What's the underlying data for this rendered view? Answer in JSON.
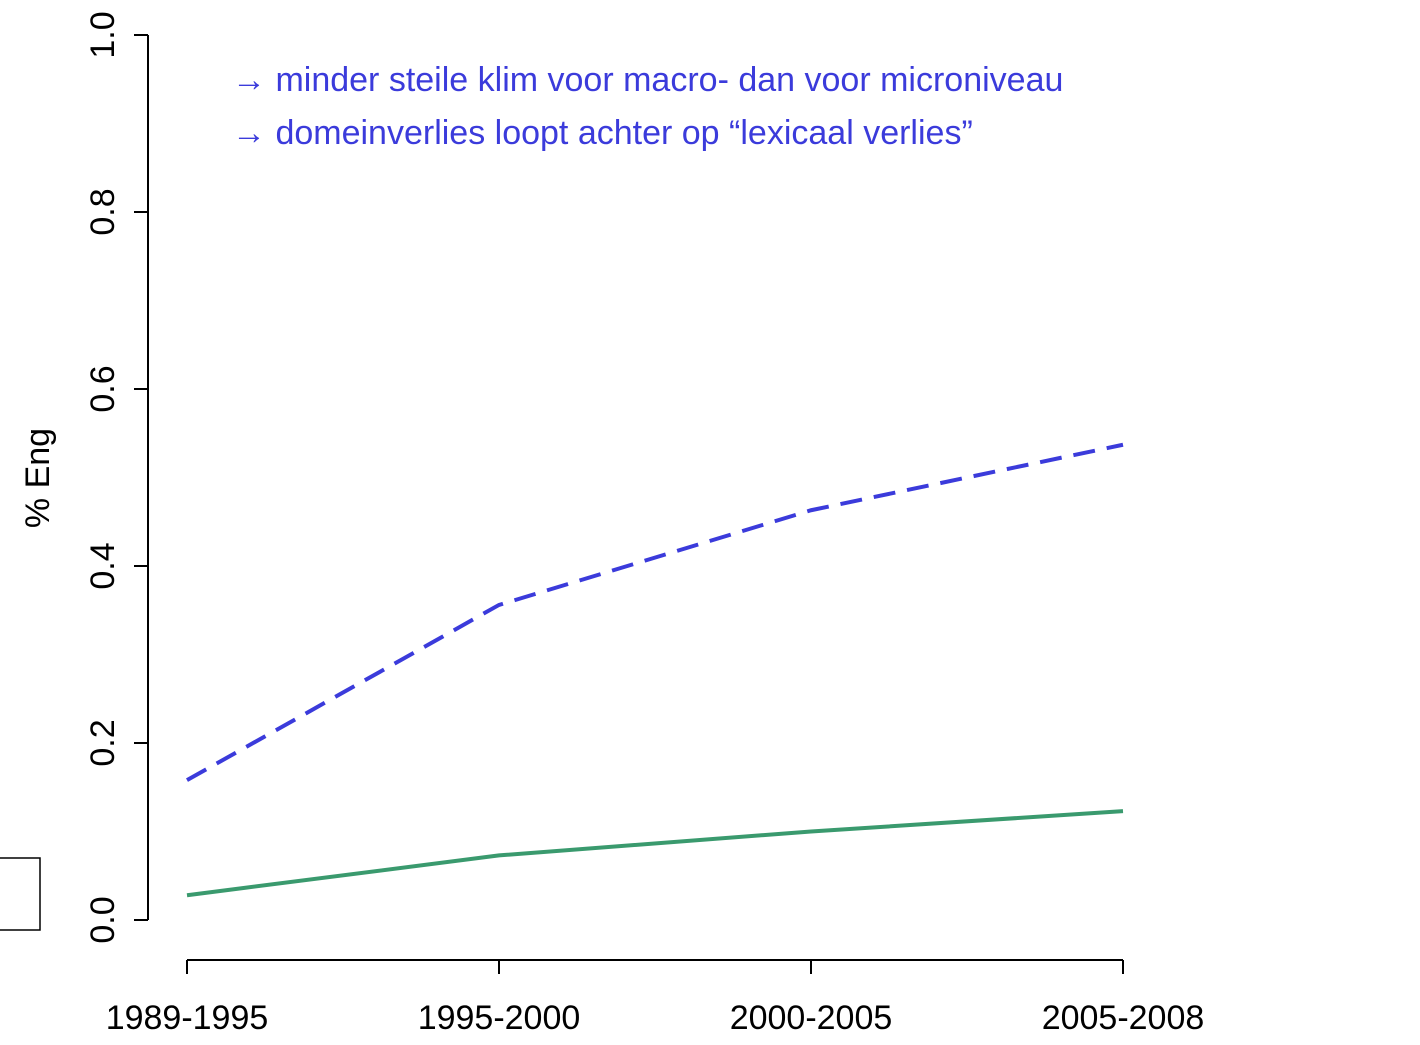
{
  "chart_data": {
    "type": "line",
    "ylabel": "% Eng",
    "annotations": [
      "→ minder steile klim voor macro- dan voor microniveau",
      "→ domeinverlies loopt achter op “lexicaal verlies”"
    ],
    "annotation_color": "#3b3bdb",
    "categories": [
      "1989-1995",
      "1995-2000",
      "2000-2005",
      "2005-2008"
    ],
    "series": [
      {
        "color": "#3b3bdb",
        "dashed": true,
        "values": [
          0.158,
          0.356,
          0.463,
          0.537
        ]
      },
      {
        "color": "#3a9a6e",
        "dashed": false,
        "values": [
          0.028,
          0.073,
          0.1,
          0.123
        ]
      }
    ],
    "ylim": [
      0,
      1
    ],
    "yticks": [
      {
        "value": 0,
        "label": "0.0"
      },
      0.2,
      0.4,
      0.6,
      0.8,
      {
        "value": 1,
        "label": "1.0"
      }
    ]
  }
}
